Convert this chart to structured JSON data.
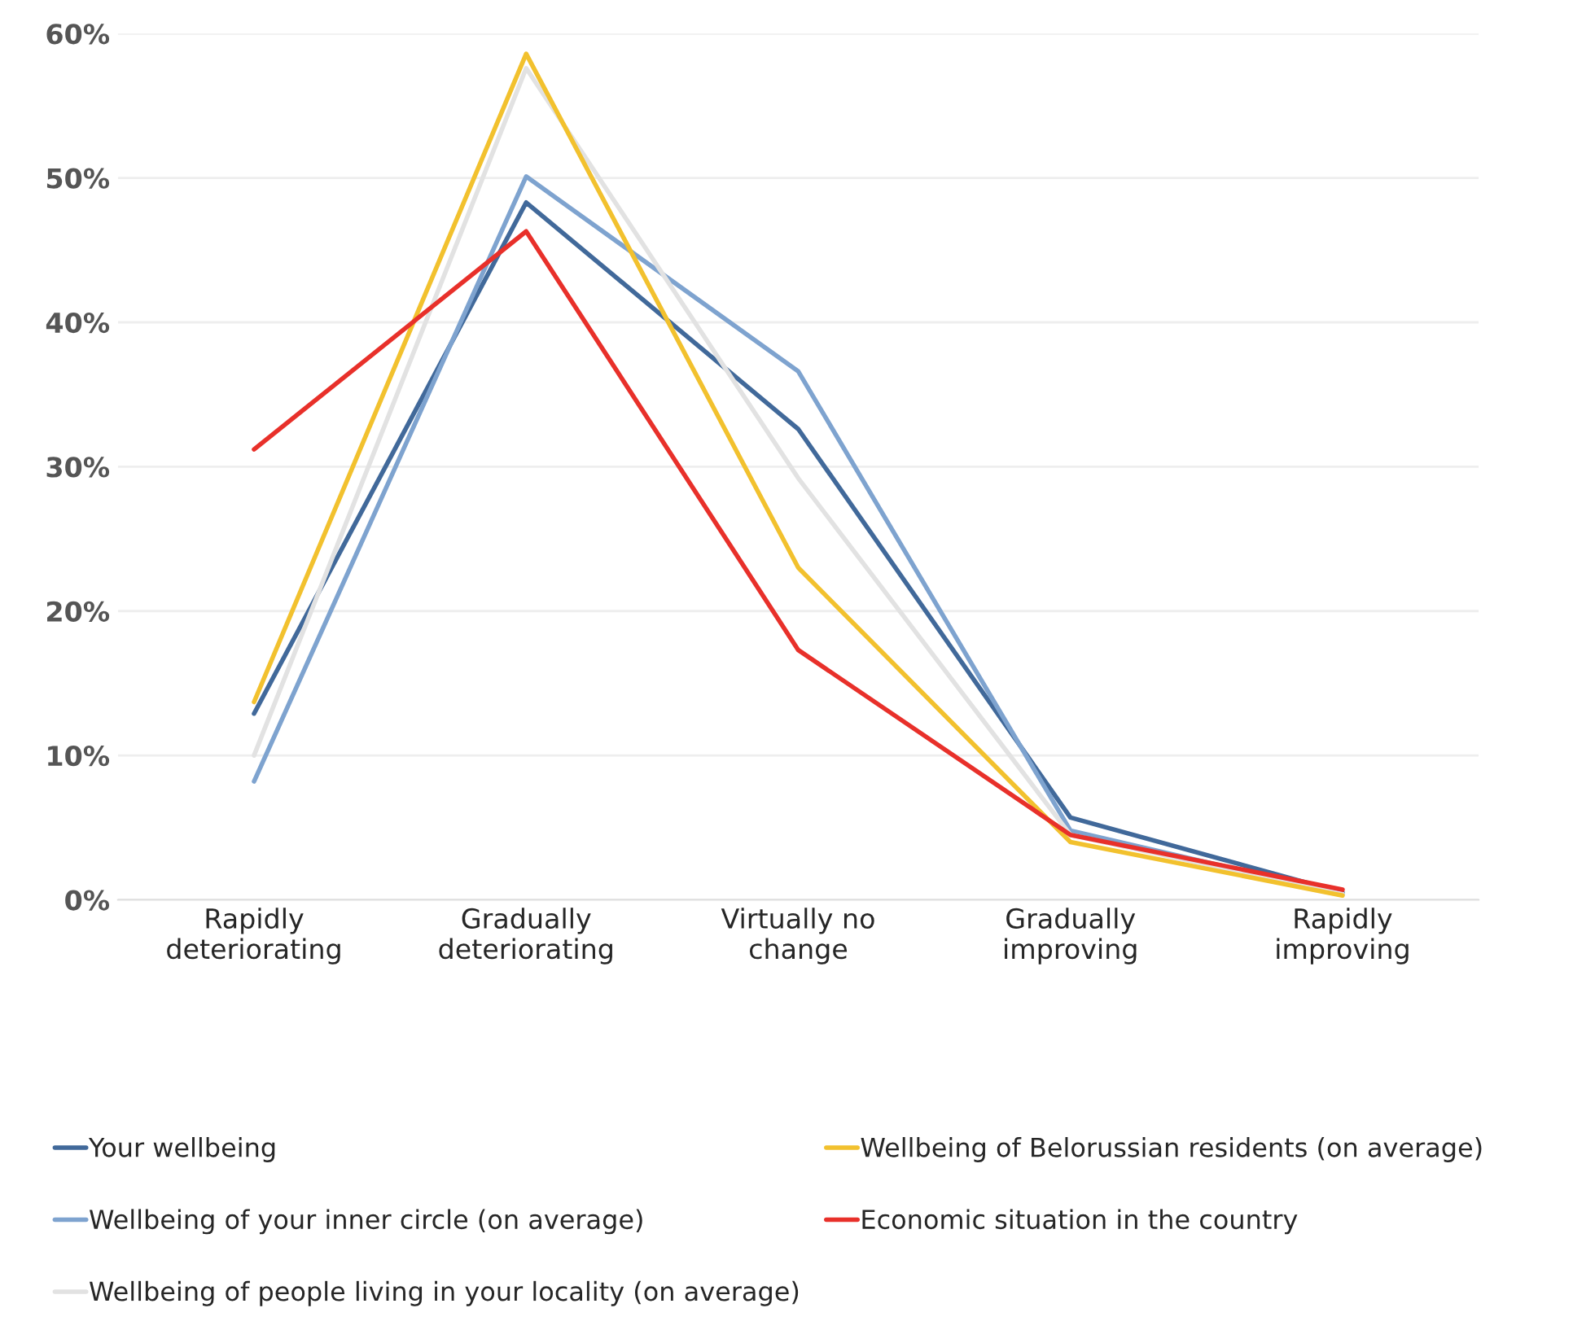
{
  "chart_data": {
    "type": "line",
    "categories": [
      "Rapidly\ndeteriorating",
      "Gradually\ndeteriorating",
      "Virtually no\nchange",
      "Gradually\nimproving",
      "Rapidly\nimproving"
    ],
    "series": [
      {
        "name": "Your wellbeing",
        "color": "#41699a",
        "values": [
          12.9,
          48.3,
          32.6,
          5.7,
          0.5
        ]
      },
      {
        "name": "Wellbeing of your inner circle (on average)",
        "color": "#7ea3cf",
        "values": [
          8.2,
          50.1,
          36.6,
          4.8,
          0.4
        ]
      },
      {
        "name": "Wellbeing of people living in your locality (on average)",
        "color": "#e2e2e2",
        "values": [
          10,
          57.6,
          29.2,
          4.5,
          0.4
        ]
      },
      {
        "name": "Wellbeing of Belorussian residents (on average)",
        "color": "#f2c12e",
        "values": [
          13.7,
          58.6,
          23.0,
          4.0,
          0.3
        ]
      },
      {
        "name": "Economic situation in the country",
        "color": "#e8302a",
        "values": [
          31.2,
          46.3,
          17.3,
          4.5,
          0.7
        ]
      }
    ],
    "ylim": [
      0,
      60
    ],
    "yticks": [
      {
        "value": 0,
        "label": "0%"
      },
      {
        "value": 10,
        "label": "10%"
      },
      {
        "value": 20,
        "label": "20%"
      },
      {
        "value": 30,
        "label": "30%"
      },
      {
        "value": 40,
        "label": "40%"
      },
      {
        "value": 50,
        "label": "50%"
      },
      {
        "value": 60,
        "label": "60%"
      }
    ],
    "grid": "y",
    "legend": "bottom",
    "marker": "none",
    "line_style": "solid"
  }
}
